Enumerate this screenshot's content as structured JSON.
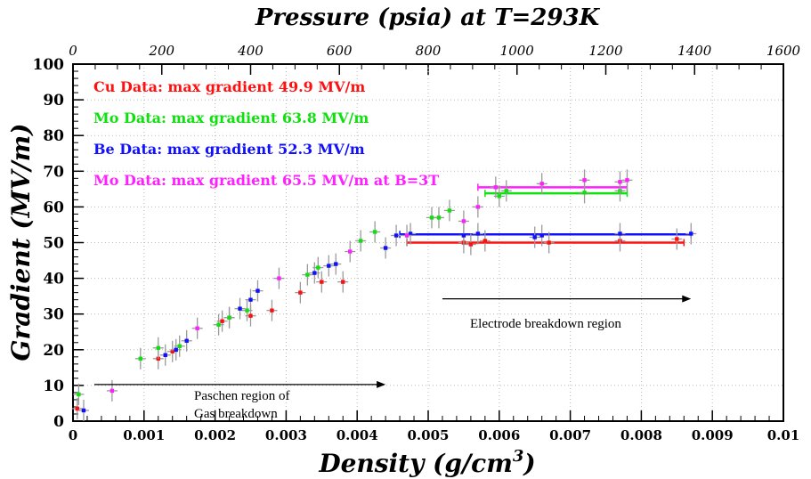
{
  "chart_data": {
    "type": "scatter",
    "title": "Pressure (psia) at T=293K",
    "xlabel": "Density (g/cm",
    "xlabel_sup": "3",
    "xlabel_tail": ")",
    "ylabel": "Gradient (MV/m)",
    "xlim": [
      0,
      0.01
    ],
    "ylim": [
      0,
      100
    ],
    "top_axis_lim": [
      0,
      1600
    ],
    "x_ticks": [
      0,
      0.001,
      0.002,
      0.003,
      0.004,
      0.005,
      0.006,
      0.007,
      0.008,
      0.009,
      0.01
    ],
    "x_tick_labels": [
      "0",
      "0.001",
      "0.002",
      "0.003",
      "0.004",
      "0.005",
      "0.006",
      "0.007",
      "0.008",
      "0.009",
      "0.01"
    ],
    "y_ticks": [
      0,
      10,
      20,
      30,
      40,
      50,
      60,
      70,
      80,
      90,
      100
    ],
    "y_tick_labels": [
      "0",
      "10",
      "20",
      "30",
      "40",
      "50",
      "60",
      "70",
      "80",
      "90",
      "100"
    ],
    "top_ticks": [
      0,
      200,
      400,
      600,
      800,
      1000,
      1200,
      1400,
      1600
    ],
    "top_tick_labels": [
      "0",
      "200",
      "400",
      "600",
      "800",
      "1000",
      "1200",
      "1400",
      "1600"
    ],
    "legend_position": "top-left",
    "series": [
      {
        "name": "Cu Data: max gradient 49.9 MV/m",
        "color": "#ff1010",
        "points": [
          [
            6e-05,
            3.5
          ],
          [
            0.0012,
            17.5
          ],
          [
            0.0014,
            19.5
          ],
          [
            0.0021,
            28
          ],
          [
            0.0022,
            29
          ],
          [
            0.0025,
            29.5
          ],
          [
            0.0028,
            31
          ],
          [
            0.0032,
            36
          ],
          [
            0.0035,
            39
          ],
          [
            0.0038,
            39
          ],
          [
            0.0055,
            50
          ],
          [
            0.0056,
            49.5
          ],
          [
            0.0058,
            50.5
          ],
          [
            0.0067,
            50
          ],
          [
            0.0077,
            50.5
          ],
          [
            0.0085,
            51
          ]
        ]
      },
      {
        "name": "Mo Data: max gradient 63.8 MV/m",
        "color": "#10e010",
        "points": [
          [
            8e-05,
            7.5
          ],
          [
            0.00095,
            17.5
          ],
          [
            0.0012,
            20.5
          ],
          [
            0.0015,
            21
          ],
          [
            0.00205,
            27
          ],
          [
            0.0022,
            29
          ],
          [
            0.00245,
            31
          ],
          [
            0.0033,
            41
          ],
          [
            0.00345,
            43
          ],
          [
            0.00405,
            50.5
          ],
          [
            0.00425,
            53
          ],
          [
            0.00505,
            57
          ],
          [
            0.00515,
            57
          ],
          [
            0.0053,
            59
          ],
          [
            0.006,
            63
          ],
          [
            0.0061,
            64.5
          ],
          [
            0.0072,
            64
          ],
          [
            0.0077,
            64.5
          ]
        ]
      },
      {
        "name": "Be Data: max gradient 52.3 MV/m",
        "color": "#1010ff",
        "points": [
          [
            0.00015,
            3
          ],
          [
            0.0013,
            18.5
          ],
          [
            0.00145,
            20
          ],
          [
            0.0016,
            22.5
          ],
          [
            0.00235,
            31.5
          ],
          [
            0.0025,
            34
          ],
          [
            0.0026,
            36.5
          ],
          [
            0.0034,
            41.5
          ],
          [
            0.0036,
            43.5
          ],
          [
            0.0037,
            44
          ],
          [
            0.0044,
            48.5
          ],
          [
            0.00455,
            52
          ],
          [
            0.00475,
            52.5
          ],
          [
            0.0055,
            52
          ],
          [
            0.0057,
            52.5
          ],
          [
            0.0065,
            51.5
          ],
          [
            0.0066,
            52
          ],
          [
            0.0077,
            52.5
          ],
          [
            0.0087,
            52.5
          ]
        ]
      },
      {
        "name": "Mo Data: max gradient 65.5 MV/m at B=3T",
        "color": "#ff20ff",
        "points": [
          [
            0.00055,
            8.5
          ],
          [
            0.00175,
            26
          ],
          [
            0.0029,
            40
          ],
          [
            0.0039,
            47.5
          ],
          [
            0.0047,
            52
          ],
          [
            0.0055,
            56
          ],
          [
            0.0057,
            60
          ],
          [
            0.00595,
            65.5
          ],
          [
            0.0066,
            66.5
          ],
          [
            0.0072,
            67.5
          ],
          [
            0.0077,
            67
          ],
          [
            0.0078,
            67.5
          ]
        ]
      }
    ],
    "span_lines": [
      {
        "series": 0,
        "x0": 0.0047,
        "x1": 0.0086,
        "y": 50
      },
      {
        "series": 2,
        "x0": 0.0046,
        "x1": 0.0087,
        "y": 52.3
      },
      {
        "series": 1,
        "x0": 0.0058,
        "x1": 0.0078,
        "y": 63.8
      },
      {
        "series": 3,
        "x0": 0.0057,
        "x1": 0.0078,
        "y": 65.5
      }
    ],
    "annotations": {
      "paschen": {
        "lines": [
          "Paschen region of",
          "Gas breakdown"
        ],
        "arrow": {
          "x0": 0.0003,
          "x1": 0.0044,
          "y": 10
        }
      },
      "electrode": {
        "lines": [
          "Electrode breakdown region"
        ],
        "arrow": {
          "x0": 0.0052,
          "x1": 0.0087,
          "y": 34
        }
      }
    }
  }
}
